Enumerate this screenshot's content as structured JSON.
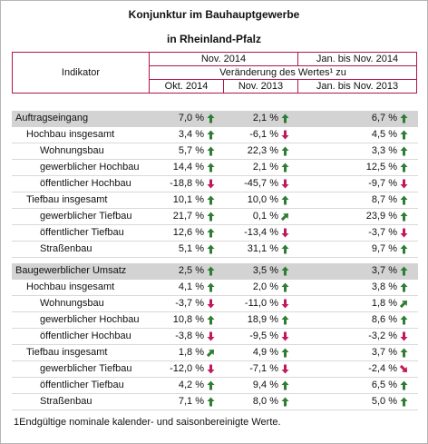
{
  "header": {
    "title_line1": "Konjunktur im Bauhauptgewerbe",
    "title_line2": "in Rheinland-Pfalz"
  },
  "table": {
    "columns": {
      "indicator": "Indikator",
      "period_a": "Nov. 2014",
      "period_b": "Jan. bis Nov. 2014",
      "change": "Veränderung des Wertes¹ zu",
      "sub": [
        "Okt. 2014",
        "Nov. 2013",
        "Jan. bis Nov. 2013"
      ]
    },
    "groups": [
      {
        "rows": [
          {
            "label": "Auftragseingang",
            "values": [
              "7,0 %",
              "2,1 %",
              "6,7 %"
            ]
          },
          {
            "label": "Hochbau insgesamt",
            "values": [
              "3,4 %",
              "-6,1 %",
              "4,5 %"
            ]
          },
          {
            "label": "Wohnungsbau",
            "values": [
              "5,7 %",
              "22,3 %",
              "3,3 %"
            ]
          },
          {
            "label": "gewerblicher Hochbau",
            "values": [
              "14,4 %",
              "2,1 %",
              "12,5 %"
            ]
          },
          {
            "label": "öffentlicher Hochbau",
            "values": [
              "-18,8 %",
              "-45,7 %",
              "-9,7 %"
            ]
          },
          {
            "label": "Tiefbau insgesamt",
            "values": [
              "10,1 %",
              "10,0 %",
              "8,7 %"
            ]
          },
          {
            "label": "gewerblicher Tiefbau",
            "values": [
              "21,7 %",
              "0,1 %",
              "23,9 %"
            ]
          },
          {
            "label": "öffentlicher Tiefbau",
            "values": [
              "12,6 %",
              "-13,4 %",
              "-3,7 %"
            ]
          },
          {
            "label": "Straßenbau",
            "values": [
              "5,1 %",
              "31,1 %",
              "9,7 %"
            ]
          }
        ]
      },
      {
        "rows": [
          {
            "label": "Baugewerblicher Umsatz",
            "values": [
              "2,5 %",
              "3,5 %",
              "3,7 %"
            ]
          },
          {
            "label": "Hochbau insgesamt",
            "values": [
              "4,1 %",
              "2,0 %",
              "3,8 %"
            ]
          },
          {
            "label": "Wohnungsbau",
            "values": [
              "-3,7 %",
              "-11,0 %",
              "1,8 %"
            ]
          },
          {
            "label": "gewerblicher Hochbau",
            "values": [
              "10,8 %",
              "18,9 %",
              "8,6 %"
            ]
          },
          {
            "label": "öffentlicher Hochbau",
            "values": [
              "-3,8 %",
              "-9,5 %",
              "-3,2 %"
            ]
          },
          {
            "label": "Tiefbau insgesamt",
            "values": [
              "1,8 %",
              "4,9 %",
              "3,7 %"
            ]
          },
          {
            "label": "gewerblicher Tiefbau",
            "values": [
              "-12,0 %",
              "-7,1 %",
              "-2,4 %"
            ]
          },
          {
            "label": "öffentlicher Tiefbau",
            "values": [
              "4,2 %",
              "9,4 %",
              "6,5 %"
            ]
          },
          {
            "label": "Straßenbau",
            "values": [
              "7,1 %",
              "8,0 %",
              "5,0 %"
            ]
          }
        ]
      }
    ]
  },
  "footnote": {
    "marker": "1",
    "text": "Endgültige nominale kalender- und saisonbereinigte Werte."
  }
}
